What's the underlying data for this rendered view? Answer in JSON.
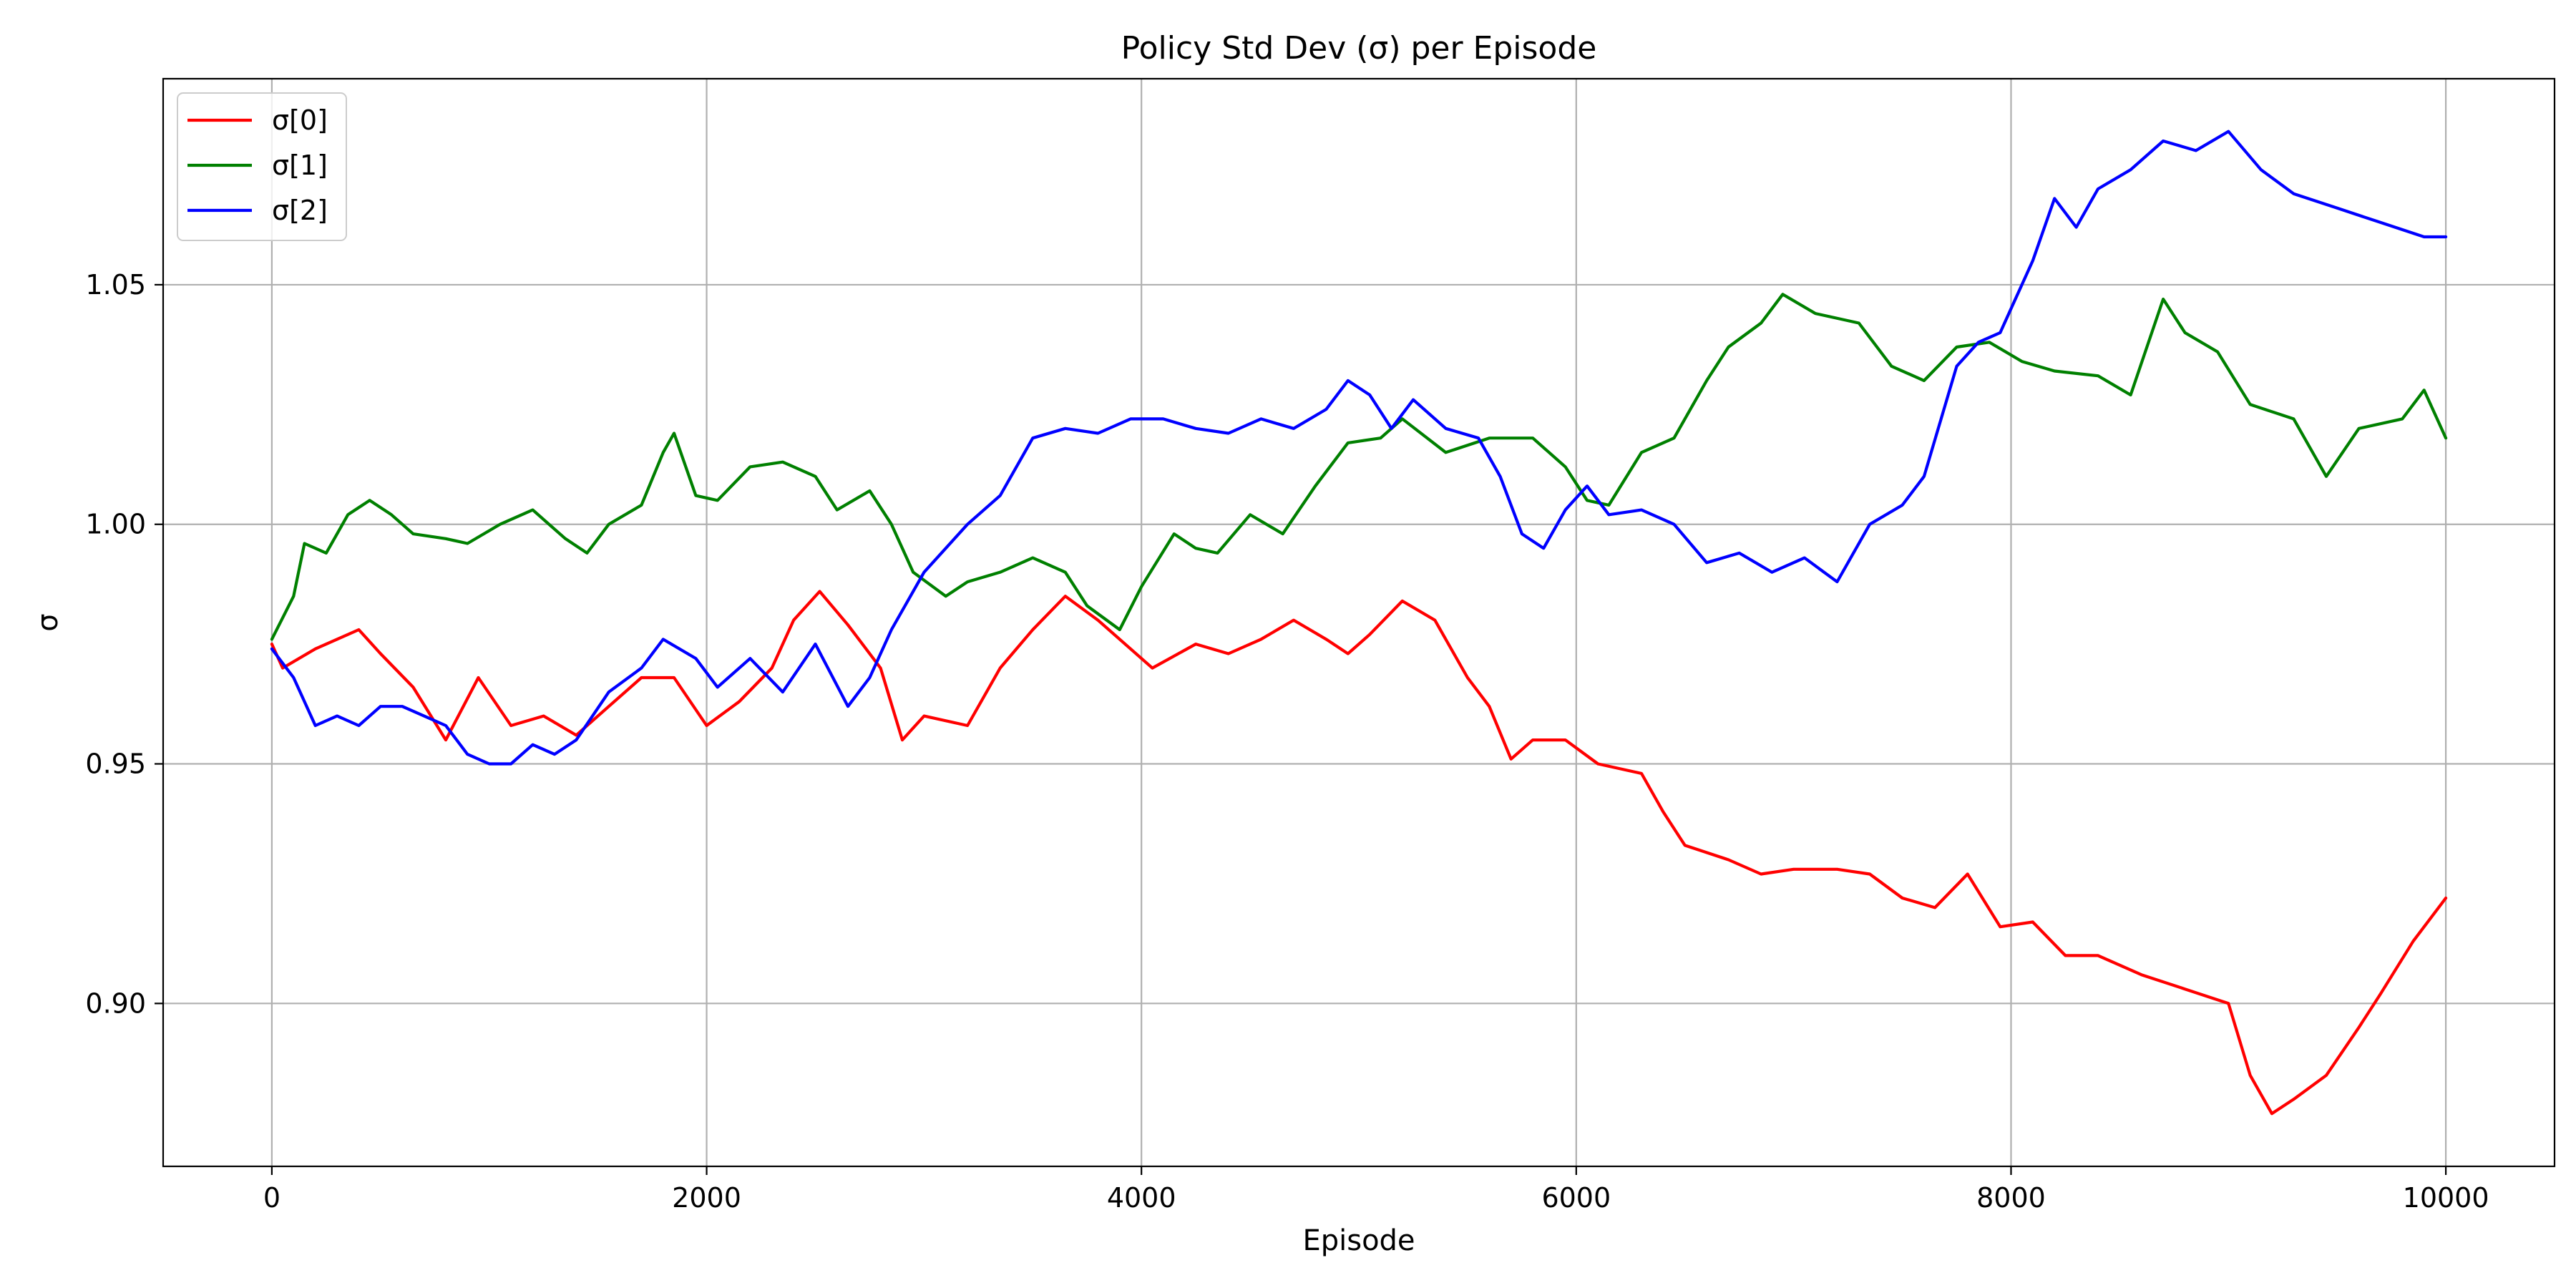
{
  "chart_data": {
    "type": "line",
    "title": "Policy Std Dev (σ) per Episode",
    "xlabel": "Episode",
    "ylabel": "σ",
    "xlim": [
      -500,
      10500
    ],
    "ylim": [
      0.866,
      1.093
    ],
    "xticks": [
      0,
      2000,
      4000,
      6000,
      8000,
      10000
    ],
    "xtick_labels": [
      "0",
      "2000",
      "4000",
      "6000",
      "8000",
      "10000"
    ],
    "yticks": [
      0.9,
      0.95,
      1.0,
      1.05
    ],
    "ytick_labels": [
      "0.90",
      "0.95",
      "1.00",
      "1.05"
    ],
    "grid": true,
    "legend_position": "top-left",
    "series": [
      {
        "name": "σ[0]",
        "color": "#ff0000",
        "points": [
          [
            0,
            0.975
          ],
          [
            50,
            0.97
          ],
          [
            200,
            0.974
          ],
          [
            400,
            0.978
          ],
          [
            500,
            0.973
          ],
          [
            650,
            0.966
          ],
          [
            800,
            0.955
          ],
          [
            950,
            0.968
          ],
          [
            1100,
            0.958
          ],
          [
            1250,
            0.96
          ],
          [
            1400,
            0.956
          ],
          [
            1550,
            0.962
          ],
          [
            1700,
            0.968
          ],
          [
            1850,
            0.968
          ],
          [
            2000,
            0.958
          ],
          [
            2150,
            0.963
          ],
          [
            2300,
            0.97
          ],
          [
            2400,
            0.98
          ],
          [
            2520,
            0.986
          ],
          [
            2650,
            0.979
          ],
          [
            2800,
            0.97
          ],
          [
            2900,
            0.955
          ],
          [
            3000,
            0.96
          ],
          [
            3200,
            0.958
          ],
          [
            3350,
            0.97
          ],
          [
            3500,
            0.978
          ],
          [
            3650,
            0.985
          ],
          [
            3800,
            0.98
          ],
          [
            3900,
            0.976
          ],
          [
            4050,
            0.97
          ],
          [
            4250,
            0.975
          ],
          [
            4400,
            0.973
          ],
          [
            4550,
            0.976
          ],
          [
            4700,
            0.98
          ],
          [
            4850,
            0.976
          ],
          [
            4950,
            0.973
          ],
          [
            5050,
            0.977
          ],
          [
            5200,
            0.984
          ],
          [
            5350,
            0.98
          ],
          [
            5500,
            0.968
          ],
          [
            5600,
            0.962
          ],
          [
            5700,
            0.951
          ],
          [
            5800,
            0.955
          ],
          [
            5950,
            0.955
          ],
          [
            6100,
            0.95
          ],
          [
            6300,
            0.948
          ],
          [
            6400,
            0.94
          ],
          [
            6500,
            0.933
          ],
          [
            6700,
            0.93
          ],
          [
            6850,
            0.927
          ],
          [
            7000,
            0.928
          ],
          [
            7200,
            0.928
          ],
          [
            7350,
            0.927
          ],
          [
            7500,
            0.922
          ],
          [
            7650,
            0.92
          ],
          [
            7800,
            0.927
          ],
          [
            7950,
            0.916
          ],
          [
            8100,
            0.917
          ],
          [
            8250,
            0.91
          ],
          [
            8400,
            0.91
          ],
          [
            8600,
            0.906
          ],
          [
            8800,
            0.903
          ],
          [
            9000,
            0.9
          ],
          [
            9100,
            0.885
          ],
          [
            9200,
            0.877
          ],
          [
            9300,
            0.88
          ],
          [
            9450,
            0.885
          ],
          [
            9600,
            0.895
          ],
          [
            9700,
            0.902
          ],
          [
            9850,
            0.913
          ],
          [
            10000,
            0.922
          ]
        ]
      },
      {
        "name": "σ[1]",
        "color": "#008000",
        "points": [
          [
            0,
            0.976
          ],
          [
            100,
            0.985
          ],
          [
            150,
            0.996
          ],
          [
            250,
            0.994
          ],
          [
            350,
            1.002
          ],
          [
            450,
            1.005
          ],
          [
            550,
            1.002
          ],
          [
            650,
            0.998
          ],
          [
            800,
            0.997
          ],
          [
            900,
            0.996
          ],
          [
            1050,
            1.0
          ],
          [
            1200,
            1.003
          ],
          [
            1350,
            0.997
          ],
          [
            1450,
            0.994
          ],
          [
            1550,
            1.0
          ],
          [
            1700,
            1.004
          ],
          [
            1800,
            1.015
          ],
          [
            1850,
            1.019
          ],
          [
            1950,
            1.006
          ],
          [
            2050,
            1.005
          ],
          [
            2200,
            1.012
          ],
          [
            2350,
            1.013
          ],
          [
            2500,
            1.01
          ],
          [
            2600,
            1.003
          ],
          [
            2750,
            1.007
          ],
          [
            2850,
            1.0
          ],
          [
            2950,
            0.99
          ],
          [
            3100,
            0.985
          ],
          [
            3200,
            0.988
          ],
          [
            3350,
            0.99
          ],
          [
            3500,
            0.993
          ],
          [
            3650,
            0.99
          ],
          [
            3750,
            0.983
          ],
          [
            3900,
            0.978
          ],
          [
            4000,
            0.987
          ],
          [
            4150,
            0.998
          ],
          [
            4250,
            0.995
          ],
          [
            4350,
            0.994
          ],
          [
            4500,
            1.002
          ],
          [
            4650,
            0.998
          ],
          [
            4800,
            1.008
          ],
          [
            4950,
            1.017
          ],
          [
            5100,
            1.018
          ],
          [
            5200,
            1.022
          ],
          [
            5400,
            1.015
          ],
          [
            5600,
            1.018
          ],
          [
            5800,
            1.018
          ],
          [
            5950,
            1.012
          ],
          [
            6050,
            1.005
          ],
          [
            6150,
            1.004
          ],
          [
            6300,
            1.015
          ],
          [
            6450,
            1.018
          ],
          [
            6600,
            1.03
          ],
          [
            6700,
            1.037
          ],
          [
            6850,
            1.042
          ],
          [
            6950,
            1.048
          ],
          [
            7100,
            1.044
          ],
          [
            7300,
            1.042
          ],
          [
            7450,
            1.033
          ],
          [
            7600,
            1.03
          ],
          [
            7750,
            1.037
          ],
          [
            7900,
            1.038
          ],
          [
            8050,
            1.034
          ],
          [
            8200,
            1.032
          ],
          [
            8400,
            1.031
          ],
          [
            8550,
            1.027
          ],
          [
            8700,
            1.047
          ],
          [
            8800,
            1.04
          ],
          [
            8950,
            1.036
          ],
          [
            9100,
            1.025
          ],
          [
            9300,
            1.022
          ],
          [
            9450,
            1.01
          ],
          [
            9600,
            1.02
          ],
          [
            9800,
            1.022
          ],
          [
            9900,
            1.028
          ],
          [
            10000,
            1.018
          ]
        ]
      },
      {
        "name": "σ[2]",
        "color": "#0000ff",
        "points": [
          [
            0,
            0.974
          ],
          [
            100,
            0.968
          ],
          [
            200,
            0.958
          ],
          [
            300,
            0.96
          ],
          [
            400,
            0.958
          ],
          [
            500,
            0.962
          ],
          [
            600,
            0.962
          ],
          [
            700,
            0.96
          ],
          [
            800,
            0.958
          ],
          [
            900,
            0.952
          ],
          [
            1000,
            0.95
          ],
          [
            1100,
            0.95
          ],
          [
            1200,
            0.954
          ],
          [
            1300,
            0.952
          ],
          [
            1400,
            0.955
          ],
          [
            1550,
            0.965
          ],
          [
            1700,
            0.97
          ],
          [
            1800,
            0.976
          ],
          [
            1950,
            0.972
          ],
          [
            2050,
            0.966
          ],
          [
            2200,
            0.972
          ],
          [
            2350,
            0.965
          ],
          [
            2500,
            0.975
          ],
          [
            2650,
            0.962
          ],
          [
            2750,
            0.968
          ],
          [
            2850,
            0.978
          ],
          [
            3000,
            0.99
          ],
          [
            3200,
            1.0
          ],
          [
            3350,
            1.006
          ],
          [
            3500,
            1.018
          ],
          [
            3650,
            1.02
          ],
          [
            3800,
            1.019
          ],
          [
            3950,
            1.022
          ],
          [
            4100,
            1.022
          ],
          [
            4250,
            1.02
          ],
          [
            4400,
            1.019
          ],
          [
            4550,
            1.022
          ],
          [
            4700,
            1.02
          ],
          [
            4850,
            1.024
          ],
          [
            4950,
            1.03
          ],
          [
            5050,
            1.027
          ],
          [
            5150,
            1.02
          ],
          [
            5250,
            1.026
          ],
          [
            5400,
            1.02
          ],
          [
            5550,
            1.018
          ],
          [
            5650,
            1.01
          ],
          [
            5750,
            0.998
          ],
          [
            5850,
            0.995
          ],
          [
            5950,
            1.003
          ],
          [
            6050,
            1.008
          ],
          [
            6150,
            1.002
          ],
          [
            6300,
            1.003
          ],
          [
            6450,
            1.0
          ],
          [
            6600,
            0.992
          ],
          [
            6750,
            0.994
          ],
          [
            6900,
            0.99
          ],
          [
            7050,
            0.993
          ],
          [
            7200,
            0.988
          ],
          [
            7350,
            1.0
          ],
          [
            7500,
            1.004
          ],
          [
            7600,
            1.01
          ],
          [
            7750,
            1.033
          ],
          [
            7850,
            1.038
          ],
          [
            7950,
            1.04
          ],
          [
            8100,
            1.055
          ],
          [
            8200,
            1.068
          ],
          [
            8300,
            1.062
          ],
          [
            8400,
            1.07
          ],
          [
            8550,
            1.074
          ],
          [
            8700,
            1.08
          ],
          [
            8850,
            1.078
          ],
          [
            9000,
            1.082
          ],
          [
            9150,
            1.074
          ],
          [
            9300,
            1.069
          ],
          [
            9500,
            1.066
          ],
          [
            9700,
            1.063
          ],
          [
            9900,
            1.06
          ],
          [
            10000,
            1.06
          ]
        ]
      }
    ]
  }
}
